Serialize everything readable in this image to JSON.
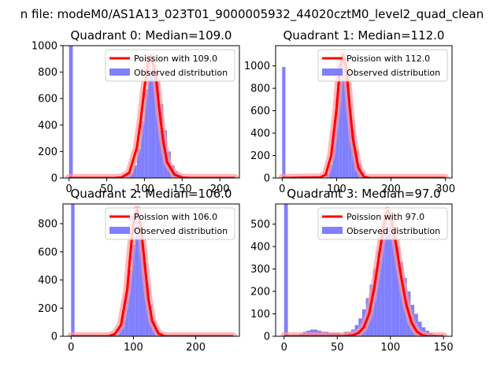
{
  "suptitle": "n file: modeM0/AS1A13_023T01_9000005932_44020cztM0_level2_quad_clean",
  "colors": {
    "poisson_line": "#ff0000",
    "poisson_glow": "#ff9999",
    "observed_bars": "#7f7fff"
  },
  "chart_data": [
    {
      "type": "bar",
      "title": "Quadrant 0: Median=109.0",
      "legend": [
        "Poission with 109.0",
        "Observed distribution"
      ],
      "legend_position": "top-right",
      "xlim": [
        -8,
        226
      ],
      "ylim": [
        0,
        1000
      ],
      "xticks": [
        0,
        50,
        100,
        150,
        200
      ],
      "yticks": [
        0,
        200,
        400,
        600,
        800,
        1000
      ],
      "bin_width": 5,
      "observed": {
        "x": [
          0,
          75,
          80,
          85,
          90,
          95,
          100,
          105,
          110,
          115,
          120,
          125,
          130,
          135,
          140,
          145,
          150,
          155,
          160
        ],
        "counts": [
          1000,
          20,
          40,
          95,
          220,
          430,
          670,
          800,
          850,
          750,
          560,
          360,
          200,
          95,
          50,
          25,
          12,
          5,
          2
        ]
      },
      "poisson": {
        "mean": 109.0,
        "x": [
          0,
          60,
          70,
          80,
          90,
          95,
          100,
          105,
          109,
          115,
          120,
          125,
          130,
          140,
          150,
          160,
          220
        ],
        "y": [
          0,
          0,
          5,
          40,
          230,
          430,
          680,
          880,
          920,
          780,
          510,
          280,
          120,
          25,
          3,
          0,
          0
        ]
      }
    },
    {
      "type": "bar",
      "title": "Quadrant 1: Median=112.0",
      "legend": [
        "Poission with 112.0",
        "Observed distribution"
      ],
      "legend_position": "top-right",
      "xlim": [
        -12,
        312
      ],
      "ylim": [
        0,
        1180
      ],
      "xticks": [
        0,
        100,
        200,
        300
      ],
      "yticks": [
        0,
        200,
        400,
        600,
        800,
        1000
      ],
      "bin_width": 6,
      "observed": {
        "x": [
          0,
          80,
          86,
          92,
          98,
          104,
          110,
          116,
          122,
          128,
          134,
          140,
          146,
          152
        ],
        "counts": [
          990,
          40,
          120,
          380,
          720,
          1000,
          1050,
          920,
          620,
          430,
          240,
          120,
          50,
          20
        ]
      },
      "poisson": {
        "mean": 112.0,
        "x": [
          0,
          70,
          80,
          90,
          100,
          106,
          112,
          118,
          124,
          130,
          140,
          150,
          160,
          300
        ],
        "y": [
          0,
          5,
          30,
          200,
          620,
          980,
          1100,
          980,
          640,
          350,
          90,
          10,
          0,
          0
        ]
      }
    },
    {
      "type": "bar",
      "title": "Quadrant 2: Median=106.0",
      "legend": [
        "Poission with 106.0",
        "Observed distribution"
      ],
      "legend_position": "top-right",
      "xlim": [
        -13,
        270
      ],
      "ylim": [
        0,
        940
      ],
      "xticks": [
        0,
        100,
        200
      ],
      "yticks": [
        0,
        200,
        400,
        600,
        800
      ],
      "bin_width": 5.5,
      "observed": {
        "x": [
          0,
          70,
          75.5,
          81,
          86.5,
          92,
          97.5,
          103,
          108.5,
          114,
          119.5,
          125,
          130.5,
          136,
          141.5
        ],
        "counts": [
          940,
          20,
          70,
          170,
          320,
          470,
          650,
          820,
          710,
          560,
          370,
          220,
          110,
          50,
          20
        ]
      },
      "poisson": {
        "mean": 106.0,
        "x": [
          0,
          60,
          70,
          80,
          90,
          96,
          101,
          106,
          112,
          118,
          124,
          130,
          140,
          150,
          260
        ],
        "y": [
          0,
          0,
          15,
          80,
          330,
          630,
          840,
          900,
          780,
          520,
          270,
          110,
          20,
          0,
          0
        ]
      }
    },
    {
      "type": "bar",
      "title": "Quadrant 3: Median=97.0",
      "legend": [
        "Poission with 97.0",
        "Observed distribution"
      ],
      "legend_position": "top-right",
      "xlim": [
        -8,
        158
      ],
      "ylim": [
        0,
        590
      ],
      "xticks": [
        0,
        50,
        100,
        150
      ],
      "yticks": [
        0,
        100,
        200,
        300,
        400,
        500
      ],
      "bin_width": 3.5,
      "observed": {
        "x": [
          0,
          14,
          17.5,
          21,
          24.5,
          28,
          31.5,
          35,
          38.5,
          42,
          45.5,
          49,
          52.5,
          56,
          59.5,
          63,
          66.5,
          70,
          73.5,
          77,
          80.5,
          84,
          87.5,
          91,
          94.5,
          98,
          101.5,
          105,
          108.5,
          112,
          115.5,
          119,
          122.5,
          126,
          129.5,
          133,
          136.5,
          140,
          143.5
        ],
        "counts": [
          590,
          10,
          20,
          25,
          30,
          30,
          25,
          20,
          20,
          15,
          15,
          15,
          10,
          20,
          20,
          30,
          50,
          80,
          120,
          170,
          230,
          300,
          380,
          430,
          480,
          500,
          450,
          400,
          330,
          260,
          200,
          140,
          100,
          65,
          40,
          25,
          15,
          8,
          4
        ]
      },
      "poisson": {
        "mean": 97.0,
        "x": [
          0,
          55,
          65,
          70,
          75,
          80,
          85,
          90,
          95,
          97,
          100,
          105,
          110,
          115,
          120,
          125,
          130,
          135,
          150
        ],
        "y": [
          0,
          0,
          5,
          15,
          40,
          100,
          220,
          380,
          530,
          560,
          540,
          420,
          270,
          140,
          60,
          20,
          5,
          0,
          0
        ]
      }
    }
  ]
}
